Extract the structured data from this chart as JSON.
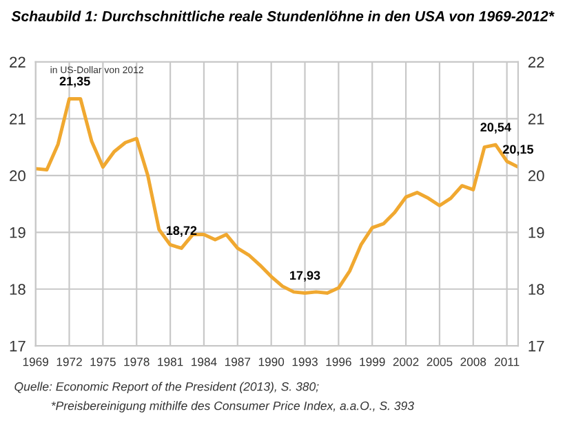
{
  "chart_data": {
    "type": "line",
    "title": "Schaubild 1: Durchschnittliche reale Stundenlöhne in den USA von 1969-2012*",
    "subtitle": "in US-Dollar von 2012",
    "x": [
      1969,
      1970,
      1971,
      1972,
      1973,
      1974,
      1975,
      1976,
      1977,
      1978,
      1979,
      1980,
      1981,
      1982,
      1983,
      1984,
      1985,
      1986,
      1987,
      1988,
      1989,
      1990,
      1991,
      1992,
      1993,
      1994,
      1995,
      1996,
      1997,
      1998,
      1999,
      2000,
      2001,
      2002,
      2003,
      2004,
      2005,
      2006,
      2007,
      2008,
      2009,
      2010,
      2011,
      2012
    ],
    "series": [
      {
        "color": "#f0a830",
        "values": [
          20.12,
          20.1,
          20.55,
          21.35,
          21.35,
          20.6,
          20.15,
          20.42,
          20.58,
          20.65,
          20.0,
          19.05,
          18.78,
          18.72,
          18.96,
          18.96,
          18.87,
          18.96,
          18.72,
          18.6,
          18.42,
          18.22,
          18.05,
          17.95,
          17.93,
          17.95,
          17.93,
          18.02,
          18.32,
          18.78,
          19.08,
          19.15,
          19.35,
          19.62,
          19.7,
          19.6,
          19.47,
          19.6,
          19.82,
          19.75,
          20.5,
          20.54,
          20.25,
          20.15
        ]
      }
    ],
    "xlim": [
      1969,
      2012
    ],
    "xticks": [
      1969,
      1972,
      1975,
      1978,
      1981,
      1984,
      1987,
      1990,
      1993,
      1996,
      1999,
      2002,
      2005,
      2008,
      2011
    ],
    "ylim": [
      17,
      22
    ],
    "yticks": [
      17,
      18,
      19,
      20,
      21,
      22
    ],
    "y2lim": [
      17,
      22
    ],
    "y2ticks": [
      17,
      18,
      19,
      20,
      21,
      22
    ],
    "grid": true,
    "marker": "none",
    "line_style": "solid",
    "annotations": [
      {
        "text": "21,35",
        "x": 1972.5,
        "y": 21.35
      },
      {
        "text": "18,72",
        "x": 1982,
        "y": 18.72
      },
      {
        "text": "17,93",
        "x": 1993,
        "y": 17.93
      },
      {
        "text": "20,54",
        "x": 2010,
        "y": 20.54
      },
      {
        "text": "20,15",
        "x": 2012,
        "y": 20.15
      },
      "Quelle: Economic Report of the President (2013), S. 380;",
      "*Preisbereinigung mithilfe des Consumer Price Index, a.a.O., S. 393"
    ]
  }
}
